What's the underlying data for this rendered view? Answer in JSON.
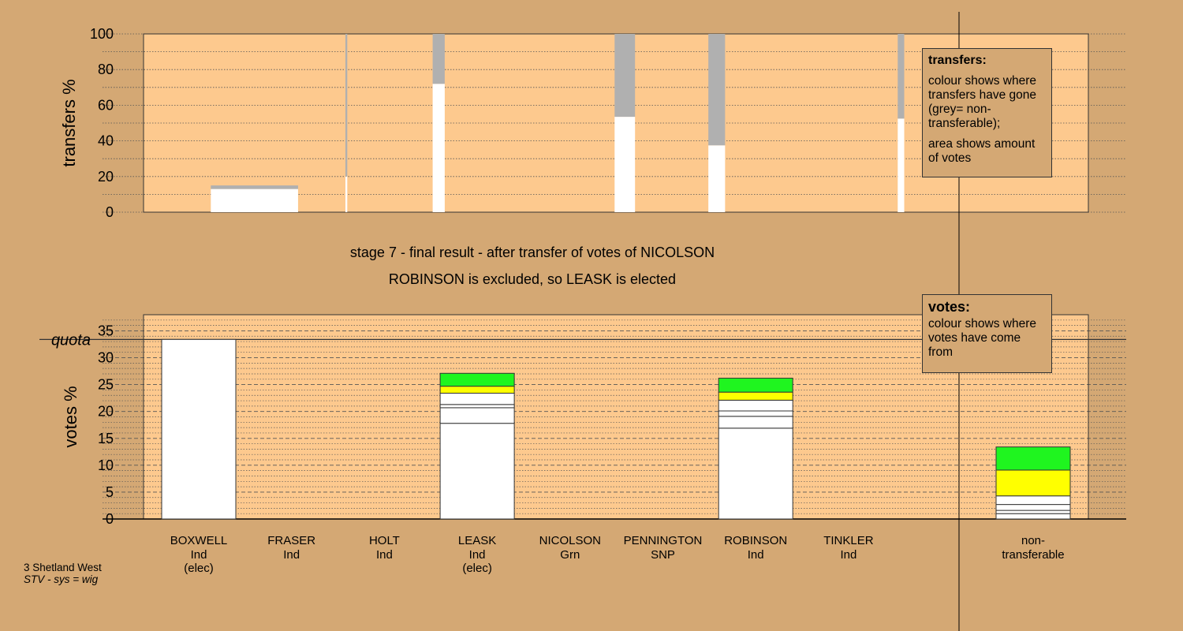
{
  "footer": {
    "constituency": "3 Shetland West",
    "system": "STV - sys = wig"
  },
  "titles": {
    "stage_line": "stage 7 - final result - after transfer of votes of NICOLSON",
    "result_line": "ROBINSON is excluded, so LEASK is elected"
  },
  "legends": {
    "transfers": {
      "heading": "transfers:",
      "text1": "colour shows where transfers have gone (grey= non-transferable);",
      "text2": "area shows amount of votes"
    },
    "votes": {
      "heading": "votes:",
      "text1": "colour shows where votes have come from"
    }
  },
  "colors": {
    "background": "#d4a874",
    "plot_area": "#fdc98e",
    "white": "#ffffff",
    "grey": "#b0b0b0",
    "yellow": "#ffff00",
    "green": "#1ff51f"
  },
  "chart_data": [
    {
      "type": "bar",
      "name": "transfers",
      "ylabel": "transfers %",
      "ylim": [
        0,
        100
      ],
      "yticks": [
        0,
        20,
        40,
        60,
        80,
        100
      ],
      "grid": "dotted horizontal",
      "bars": [
        {
          "x_start": 0.13,
          "x_end": 1.07,
          "segments": [
            {
              "color": "white",
              "value": 13
            },
            {
              "color": "grey",
              "value": 2
            }
          ]
        },
        {
          "x_start": 1.58,
          "x_end": 1.6,
          "segments": [
            {
              "color": "white",
              "value": 20
            },
            {
              "color": "grey",
              "value": 80
            }
          ]
        },
        {
          "x_start": 2.52,
          "x_end": 2.65,
          "segments": [
            {
              "color": "white",
              "value": 72
            },
            {
              "color": "grey",
              "value": 28
            }
          ]
        },
        {
          "x_start": 4.48,
          "x_end": 4.7,
          "segments": [
            {
              "color": "white",
              "value": 53.5
            },
            {
              "color": "grey",
              "value": 46.5
            }
          ]
        },
        {
          "x_start": 5.49,
          "x_end": 5.67,
          "segments": [
            {
              "color": "white",
              "value": 37.5
            },
            {
              "color": "grey",
              "value": 62.5
            }
          ]
        },
        {
          "x_start": 7.53,
          "x_end": 7.6,
          "segments": [
            {
              "color": "white",
              "value": 52.5
            },
            {
              "color": "grey",
              "value": 47.5
            }
          ]
        }
      ]
    },
    {
      "type": "bar",
      "name": "votes",
      "ylabel": "votes %",
      "ylim": [
        0,
        38
      ],
      "yticks": [
        0,
        5,
        10,
        15,
        20,
        25,
        30,
        35
      ],
      "grid": "dashed horizontal",
      "quota": {
        "label": "quota",
        "value": 33.4
      },
      "categories": [
        {
          "name": "BOXWELL",
          "party": "Ind",
          "note": "(elec)"
        },
        {
          "name": "FRASER",
          "party": "Ind",
          "note": ""
        },
        {
          "name": "HOLT",
          "party": "Ind",
          "note": ""
        },
        {
          "name": "LEASK",
          "party": "Ind",
          "note": "(elec)"
        },
        {
          "name": "NICOLSON",
          "party": "Grn",
          "note": ""
        },
        {
          "name": "PENNINGTON",
          "party": "SNP",
          "note": ""
        },
        {
          "name": "ROBINSON",
          "party": "Ind",
          "note": ""
        },
        {
          "name": "TINKLER",
          "party": "Ind",
          "note": ""
        },
        {
          "name": "non-",
          "party": "transferable",
          "note": ""
        }
      ],
      "stacks": [
        [
          {
            "color": "white",
            "value": 33.4
          }
        ],
        [],
        [],
        [
          {
            "color": "white",
            "value": 17.8
          },
          {
            "color": "white",
            "value": 2.9
          },
          {
            "color": "white",
            "value": 0.6
          },
          {
            "color": "white",
            "value": 2.1
          },
          {
            "color": "yellow",
            "value": 1.3
          },
          {
            "color": "green",
            "value": 2.4
          }
        ],
        [],
        [],
        [
          {
            "color": "white",
            "value": 16.9
          },
          {
            "color": "white",
            "value": 2.2
          },
          {
            "color": "white",
            "value": 1.0
          },
          {
            "color": "white",
            "value": 2.0
          },
          {
            "color": "yellow",
            "value": 1.5
          },
          {
            "color": "green",
            "value": 2.6
          }
        ],
        [],
        [
          {
            "color": "white",
            "value": 1.0
          },
          {
            "color": "white",
            "value": 0.6
          },
          {
            "color": "white",
            "value": 1.1
          },
          {
            "color": "white",
            "value": 1.6
          },
          {
            "color": "yellow",
            "value": 4.8
          },
          {
            "color": "green",
            "value": 4.3
          }
        ]
      ]
    }
  ]
}
